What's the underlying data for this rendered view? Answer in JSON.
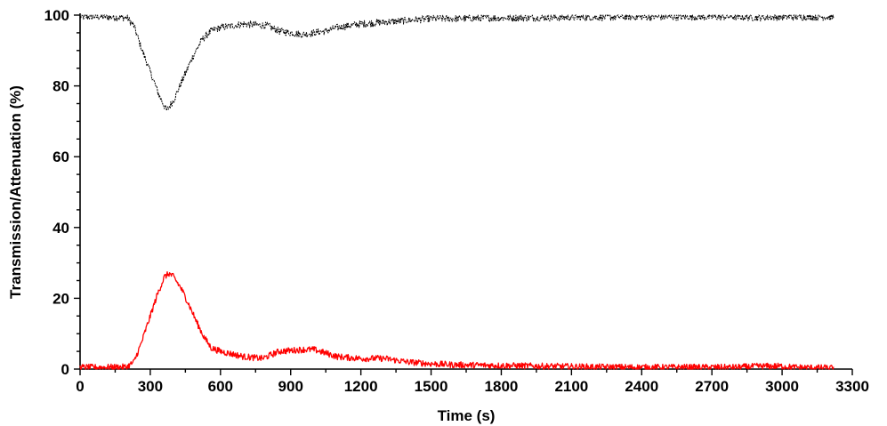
{
  "chart_data": {
    "type": "line",
    "xlabel": "Time (s)",
    "ylabel": "Transmission/Attenuation (%)",
    "xlim": [
      0,
      3300
    ],
    "ylim": [
      0,
      100
    ],
    "xticks": [
      "0",
      "300",
      "600",
      "900",
      "1200",
      "1500",
      "1800",
      "2100",
      "2400",
      "2700",
      "3000",
      "3300"
    ],
    "yticks": [
      "0",
      "20",
      "40",
      "60",
      "80",
      "100"
    ],
    "grid": false,
    "legend": "none",
    "series": [
      {
        "color": "#000000",
        "style": "dotted",
        "x": [
          0,
          100,
          200,
          230,
          260,
          300,
          340,
          370,
          400,
          440,
          480,
          520,
          560,
          600,
          700,
          800,
          850,
          900,
          950,
          1000,
          1050,
          1100,
          1200,
          1300,
          1400,
          1500,
          1600,
          1800,
          2000,
          2200,
          2400,
          2600,
          2800,
          2900,
          3000,
          3100,
          3220
        ],
        "y": [
          99.5,
          99.5,
          99.3,
          97,
          91,
          84,
          77,
          73,
          76,
          82,
          88,
          93,
          95.5,
          96.5,
          97.5,
          97,
          95.5,
          95,
          94.5,
          95,
          95.5,
          96.5,
          97.5,
          98,
          98.5,
          99,
          99,
          99.2,
          99.3,
          99.4,
          99.5,
          99.5,
          99.5,
          99.3,
          99.5,
          99.5,
          99.5
        ],
        "noise": 1.0
      },
      {
        "color": "#ff0000",
        "style": "solid",
        "x": [
          0,
          100,
          200,
          230,
          260,
          300,
          330,
          360,
          380,
          400,
          430,
          460,
          500,
          530,
          560,
          600,
          700,
          780,
          850,
          950,
          1000,
          1050,
          1100,
          1200,
          1300,
          1400,
          1500,
          1600,
          1800,
          2000,
          2200,
          2400,
          2600,
          2800,
          2900,
          3000,
          3050,
          3220
        ],
        "y": [
          0.5,
          0.5,
          0.6,
          2,
          7,
          15,
          21,
          26,
          27,
          26,
          23,
          19,
          13,
          9,
          6,
          5,
          3.5,
          3,
          5,
          5.5,
          5.5,
          4.5,
          3.5,
          3,
          3,
          2,
          1.5,
          1.2,
          1,
          0.8,
          0.6,
          0.5,
          0.5,
          0.5,
          0.8,
          0.8,
          0.5,
          0.3
        ],
        "noise": 0.9
      }
    ]
  }
}
